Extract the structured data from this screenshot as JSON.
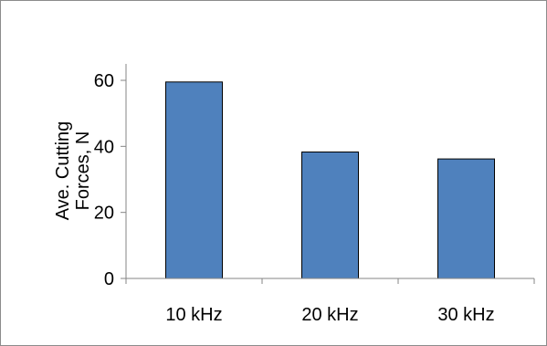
{
  "chart_data": {
    "type": "bar",
    "title": "",
    "xlabel": "",
    "ylabel_lines": [
      "Ave. Cutting",
      "Forces, N"
    ],
    "categories": [
      "10 kHz",
      "20 kHz",
      "30 kHz"
    ],
    "values": [
      59.5,
      38.3,
      36.2
    ],
    "ylim": [
      0,
      60
    ],
    "yticks": [
      0,
      20,
      40,
      60
    ],
    "grid": false,
    "legend": "none",
    "bar_color": "#4f81bd",
    "bar_edge_color": "#000000"
  }
}
